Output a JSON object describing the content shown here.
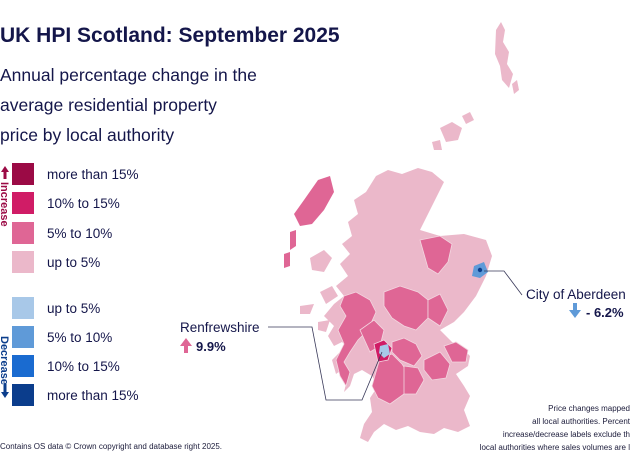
{
  "title": "UK HPI Scotland: September 2025",
  "subtitle_lines": [
    "Annual percentage change in the",
    "average residential property",
    "price by local authority"
  ],
  "legend": {
    "increase_label": "Increase",
    "decrease_label": "Decrease",
    "increase": [
      {
        "label": "more than 15%",
        "color": "#9b0a45"
      },
      {
        "label": "10% to 15%",
        "color": "#d01c66"
      },
      {
        "label": "5% to 10%",
        "color": "#df6695"
      },
      {
        "label": "up to 5%",
        "color": "#ebb8ca"
      }
    ],
    "decrease": [
      {
        "label": "up to 5%",
        "color": "#a8c8e8"
      },
      {
        "label": "5% to 10%",
        "color": "#5f9ad8"
      },
      {
        "label": "10% to 15%",
        "color": "#1a6bd0"
      },
      {
        "label": "more than 15%",
        "color": "#0b3d8c"
      }
    ]
  },
  "callouts": {
    "renfrewshire": {
      "name": "Renfrewshire",
      "value": "9.9%",
      "direction": "up",
      "color": "#df6695"
    },
    "aberdeen": {
      "name": "City of Aberdeen",
      "value": "- 6.2%",
      "direction": "down",
      "color": "#5f9ad8"
    }
  },
  "note_lines": [
    "Price changes mapped",
    "all local authorities. Percent",
    "increase/decrease labels exclude th",
    "local authorities where sales volumes are l"
  ],
  "credit": "Contains OS data © Crown copyright and database right 2025.",
  "colors": {
    "title": "#14164a",
    "land_light": "#ebb8ca",
    "land_mid": "#df6695",
    "land_dark": "#d01c66"
  }
}
